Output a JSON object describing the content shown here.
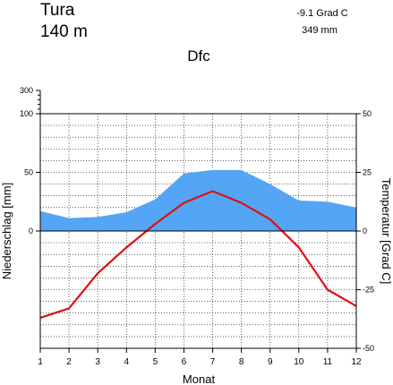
{
  "header": {
    "station": "Tura",
    "elevation": "140  m",
    "mean_temperature": "-9.1 Grad C",
    "annual_precipitation": "349 mm",
    "climate_class": "Dfc"
  },
  "chart_data": {
    "type": "line",
    "title": "",
    "xlabel": "Monat",
    "ylabel_left": "Niederschlag [mm]",
    "ylabel_right": "Temperatur [Grad C]",
    "x": [
      1,
      2,
      3,
      4,
      5,
      6,
      7,
      8,
      9,
      10,
      11,
      12
    ],
    "x_ticks": [
      "1",
      "2",
      "3",
      "4",
      "5",
      "6",
      "7",
      "8",
      "9",
      "10",
      "11",
      "12"
    ],
    "y_left_ticks": [
      "300",
      "100",
      "50",
      "0"
    ],
    "y_right_ticks": [
      "50",
      "25",
      "0",
      "-25",
      "-50"
    ],
    "y_right_range": [
      -50,
      50
    ],
    "grid": true,
    "series": [
      {
        "name": "",
        "axis": "left",
        "kind": "area",
        "color": "#55a5f5",
        "values": [
          17,
          11,
          12,
          16,
          27,
          49,
          52,
          52,
          40,
          26,
          25,
          20
        ]
      },
      {
        "name": "",
        "axis": "right",
        "kind": "line",
        "color": "#dd1111",
        "values": [
          -37,
          -33,
          -18,
          -7,
          3,
          12,
          17,
          12,
          5,
          -7,
          -25,
          -32
        ]
      }
    ]
  }
}
